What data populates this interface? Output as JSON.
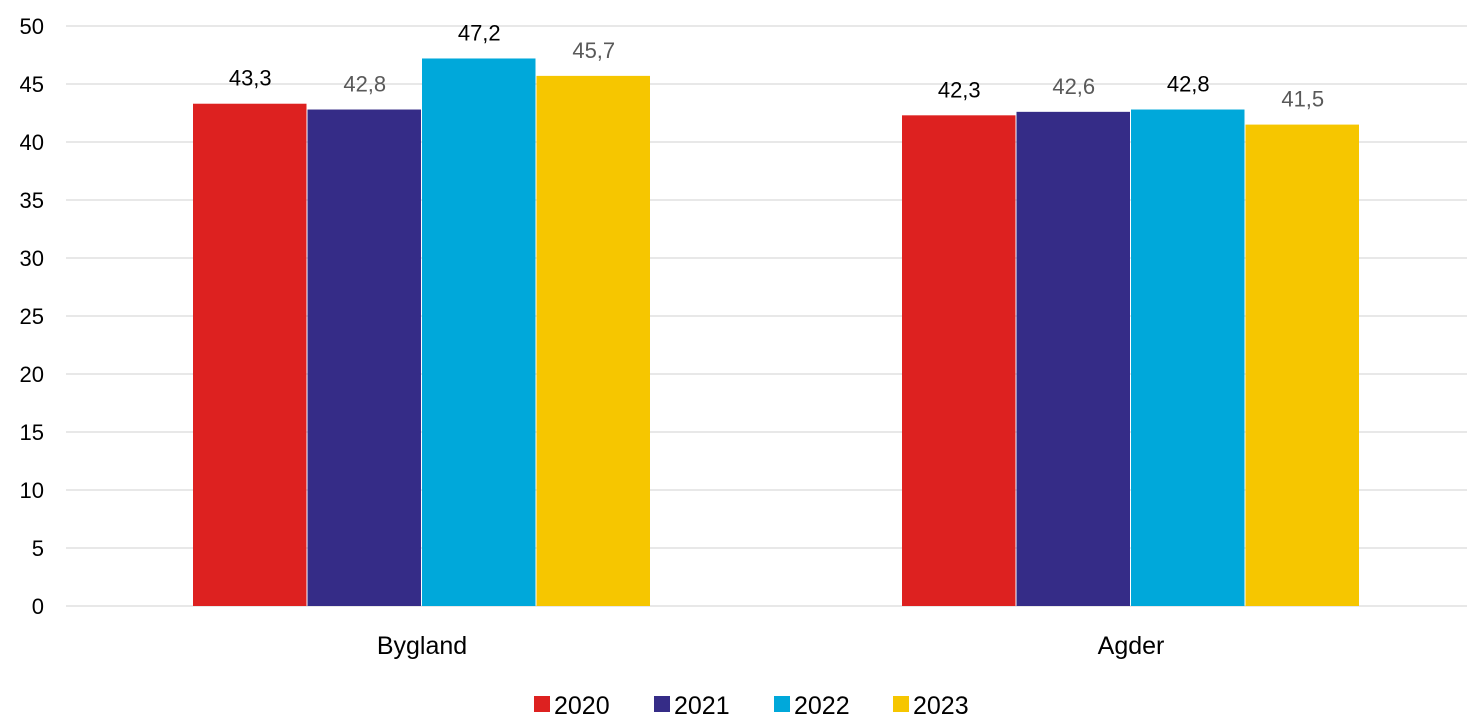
{
  "chart_data": {
    "type": "bar",
    "categories": [
      "Bygland",
      "Agder"
    ],
    "series": [
      {
        "name": "2020",
        "values": [
          43.3,
          42.3
        ],
        "labels": [
          "43,3",
          "42,3"
        ],
        "color": "#dd2120",
        "label_color": "#000000"
      },
      {
        "name": "2021",
        "values": [
          42.8,
          42.6
        ],
        "labels": [
          "42,8",
          "42,6"
        ],
        "color": "#352c87",
        "label_color": "#595959"
      },
      {
        "name": "2022",
        "values": [
          47.2,
          42.8
        ],
        "labels": [
          "47,2",
          "42,8"
        ],
        "color": "#00a8da",
        "label_color": "#000000"
      },
      {
        "name": "2023",
        "values": [
          45.7,
          41.5
        ],
        "labels": [
          "45,7",
          "41,5"
        ],
        "color": "#f6c600",
        "label_color": "#595959"
      }
    ],
    "ylim": [
      0,
      50
    ],
    "yticks": [
      0,
      5,
      10,
      15,
      20,
      25,
      30,
      35,
      40,
      45,
      50
    ],
    "grid": true,
    "legend_position": "bottom",
    "title": "",
    "xlabel": "",
    "ylabel": ""
  }
}
